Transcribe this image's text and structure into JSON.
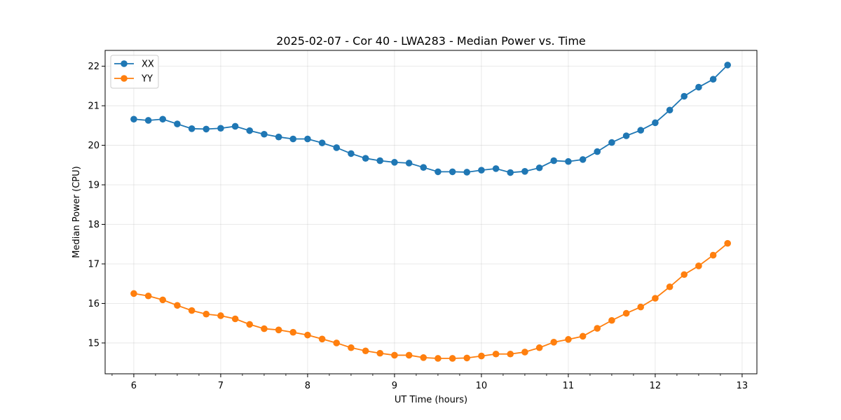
{
  "chart_data": {
    "type": "line",
    "title": "2025-02-07 - Cor 40 - LWA283 - Median Power vs. Time",
    "xlabel": "UT Time (hours)",
    "ylabel": "Median Power (CPU)",
    "xlim": [
      5.67,
      13.17
    ],
    "ylim": [
      14.22,
      22.4
    ],
    "xticks": [
      6,
      7,
      8,
      9,
      10,
      11,
      12,
      13
    ],
    "yticks": [
      15,
      16,
      17,
      18,
      19,
      20,
      21,
      22
    ],
    "grid": true,
    "legend_position": "top-left",
    "x": [
      6.0,
      6.167,
      6.333,
      6.5,
      6.667,
      6.833,
      7.0,
      7.167,
      7.333,
      7.5,
      7.667,
      7.833,
      8.0,
      8.167,
      8.333,
      8.5,
      8.667,
      8.833,
      9.0,
      9.167,
      9.333,
      9.5,
      9.667,
      9.833,
      10.0,
      10.167,
      10.333,
      10.5,
      10.667,
      10.833,
      11.0,
      11.167,
      11.333,
      11.5,
      11.667,
      11.833,
      12.0,
      12.167,
      12.333,
      12.5,
      12.667,
      12.833
    ],
    "series": [
      {
        "name": "XX",
        "color": "#1f77b4",
        "values": [
          20.66,
          20.63,
          20.66,
          20.54,
          20.42,
          20.41,
          20.43,
          20.48,
          20.37,
          20.28,
          20.21,
          20.16,
          20.16,
          20.06,
          19.94,
          19.79,
          19.67,
          19.61,
          19.57,
          19.55,
          19.44,
          19.33,
          19.33,
          19.32,
          19.37,
          19.41,
          19.31,
          19.34,
          19.43,
          19.61,
          19.59,
          19.64,
          19.84,
          20.07,
          20.24,
          20.38,
          20.57,
          20.89,
          21.24,
          21.47,
          21.67,
          22.03
        ]
      },
      {
        "name": "YY",
        "color": "#ff7f0e",
        "values": [
          16.25,
          16.19,
          16.09,
          15.95,
          15.82,
          15.73,
          15.69,
          15.61,
          15.47,
          15.36,
          15.33,
          15.27,
          15.2,
          15.1,
          15.0,
          14.88,
          14.8,
          14.74,
          14.69,
          14.69,
          14.63,
          14.61,
          14.61,
          14.62,
          14.67,
          14.72,
          14.72,
          14.77,
          14.88,
          15.02,
          15.09,
          15.17,
          15.37,
          15.57,
          15.75,
          15.91,
          16.13,
          16.42,
          16.73,
          16.95,
          17.22,
          17.52
        ]
      }
    ]
  }
}
